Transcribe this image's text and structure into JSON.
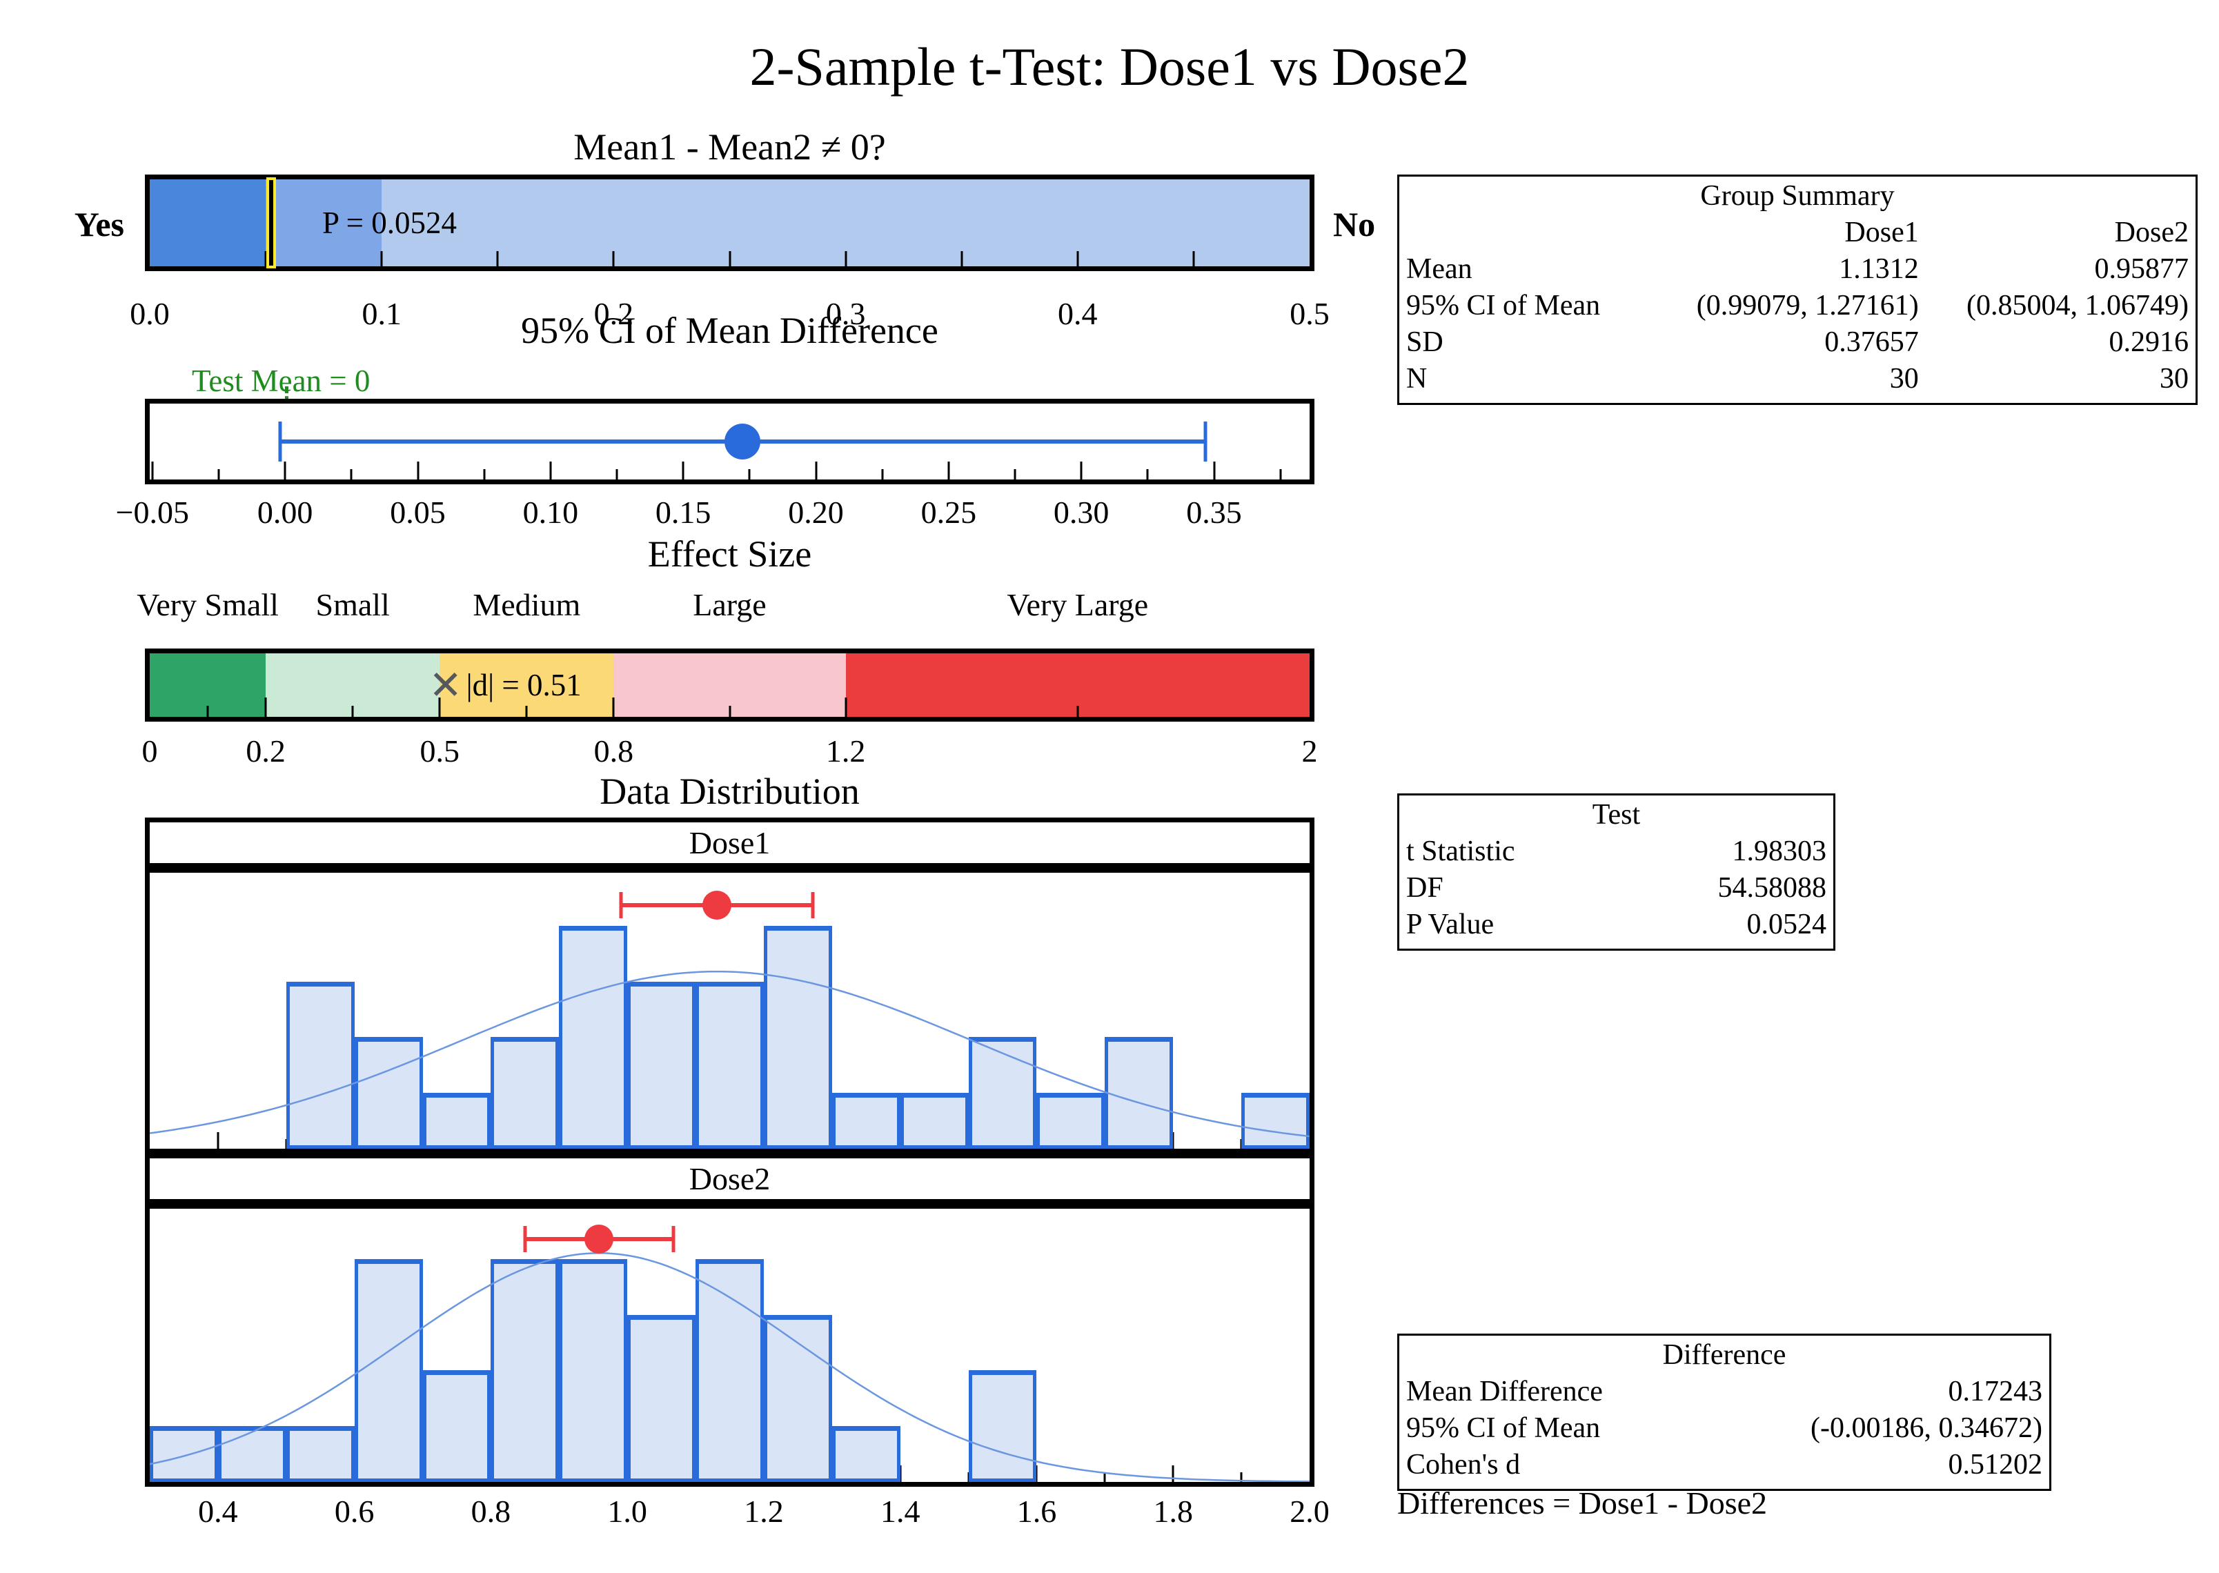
{
  "title": "2-Sample t-Test: Dose1 vs Dose2",
  "chart_data": [
    {
      "id": "pvalue_bar",
      "type": "bar",
      "title": "Mean1 - Mean2 ≠ 0?",
      "left_label": "Yes",
      "right_label": "No",
      "marker": {
        "value": 0.0524,
        "label": "P = 0.0524",
        "line_color": "#000000",
        "halo_color": "#ffe92c"
      },
      "regions": [
        {
          "from": 0,
          "to": 0.05,
          "color": "#4a86db"
        },
        {
          "from": 0.05,
          "to": 0.1,
          "color": "#7fa6e6"
        },
        {
          "from": 0.1,
          "to": 0.5,
          "color": "#b3caef"
        }
      ],
      "axis": {
        "min": 0,
        "max": 0.5,
        "minor_step": 0.05,
        "label_values": [
          0,
          0.1,
          0.2,
          0.3,
          0.4,
          0.5
        ],
        "labels": [
          "0.0",
          "0.1",
          "0.2",
          "0.3",
          "0.4",
          "0.5"
        ]
      }
    },
    {
      "id": "ci_mean_difference",
      "type": "errorbar",
      "title": "95% CI of Mean Difference",
      "reference": {
        "value": 0,
        "label": "Test Mean = 0",
        "color": "#1e8c1e"
      },
      "point": 0.17243,
      "ci": [
        -0.00186,
        0.34672
      ],
      "color": "#2a6bdb",
      "axis": {
        "min": -0.051,
        "max": 0.386,
        "minor_step": 0.025,
        "label_values": [
          -0.05,
          0,
          0.05,
          0.1,
          0.15,
          0.2,
          0.25,
          0.3,
          0.35
        ],
        "labels": [
          "−0.05",
          "0.00",
          "0.05",
          "0.10",
          "0.15",
          "0.20",
          "0.25",
          "0.30",
          "0.35"
        ]
      }
    },
    {
      "id": "effect_size",
      "type": "scale",
      "title": "Effect Size",
      "marker": {
        "value": 0.51,
        "symbol": "✕",
        "label": "|d| = 0.51",
        "color": "#55585c"
      },
      "bands": [
        {
          "label": "Very Small",
          "from": 0,
          "to": 0.2,
          "color": "#2ea466"
        },
        {
          "label": "Small",
          "from": 0.2,
          "to": 0.5,
          "color": "#cbead6"
        },
        {
          "label": "Medium",
          "from": 0.5,
          "to": 0.8,
          "color": "#fbd976"
        },
        {
          "label": "Large",
          "from": 0.8,
          "to": 1.2,
          "color": "#f8c7ce"
        },
        {
          "label": "Very Large",
          "from": 1.2,
          "to": 2,
          "color": "#eb3d3e"
        }
      ],
      "axis": {
        "min": 0,
        "max": 2,
        "major_ticks": [
          0.2,
          0.5,
          0.8,
          1.2
        ],
        "minor_ticks": [
          0.1,
          0.35,
          0.65,
          1.0,
          1.6
        ],
        "label_values": [
          0,
          0.2,
          0.5,
          0.8,
          1.2,
          2
        ],
        "labels": [
          "0",
          "0.2",
          "0.5",
          "0.8",
          "1.2",
          "2"
        ]
      }
    },
    {
      "id": "data_distribution",
      "type": "histogram",
      "title": "Data Distribution",
      "bin_start": 0.3,
      "bin_width": 0.1,
      "bar_fill": "#d9e4f6",
      "bar_stroke": "#2a6bdb",
      "curve_color": "#6b97e0",
      "marker_color": "#ee3b41",
      "axis": {
        "min": 0.3,
        "max": 2.0,
        "minor_step": 0.1,
        "label_values": [
          0.4,
          0.6,
          0.8,
          1.0,
          1.2,
          1.4,
          1.6,
          1.8,
          2.0
        ],
        "labels": [
          "0.4",
          "0.6",
          "0.8",
          "1.0",
          "1.2",
          "1.4",
          "1.6",
          "1.8",
          "2.0"
        ]
      },
      "groups": [
        {
          "name": "Dose1",
          "n": 30,
          "mean": 1.1312,
          "sd": 0.37657,
          "ci": [
            0.99079,
            1.27161
          ],
          "counts": [
            0,
            0,
            3,
            2,
            1,
            2,
            4,
            3,
            3,
            4,
            1,
            1,
            2,
            1,
            2,
            0,
            1
          ],
          "ymax": 4.95,
          "marker_y": 4.37
        },
        {
          "name": "Dose2",
          "n": 30,
          "mean": 0.95877,
          "sd": 0.2916,
          "ci": [
            0.85004,
            1.06749
          ],
          "counts": [
            1,
            1,
            1,
            4,
            2,
            4,
            4,
            3,
            4,
            3,
            1,
            0,
            2,
            0,
            0,
            0,
            0
          ],
          "ymax": 4.9,
          "marker_y": 4.35
        }
      ]
    }
  ],
  "tables": {
    "group_summary": {
      "title": "Group Summary",
      "columns": [
        "",
        "Dose1",
        "Dose2"
      ],
      "rows": [
        [
          "Mean",
          "1.1312",
          "0.95877"
        ],
        [
          "95% CI of Mean",
          "(0.99079, 1.27161)",
          "(0.85004, 1.06749)"
        ],
        [
          "SD",
          "0.37657",
          "0.2916"
        ],
        [
          "N",
          "30",
          "30"
        ]
      ]
    },
    "test": {
      "title": "Test",
      "rows": [
        [
          "t Statistic",
          "1.98303"
        ],
        [
          "DF",
          "54.58088"
        ],
        [
          "P Value",
          "0.0524"
        ]
      ]
    },
    "difference": {
      "title": "Difference",
      "rows": [
        [
          "Mean Difference",
          "0.17243"
        ],
        [
          "95% CI of Mean",
          "(-0.00186, 0.34672)"
        ],
        [
          "Cohen's d",
          "0.51202"
        ]
      ],
      "footnote": "Differences = Dose1 - Dose2"
    }
  }
}
